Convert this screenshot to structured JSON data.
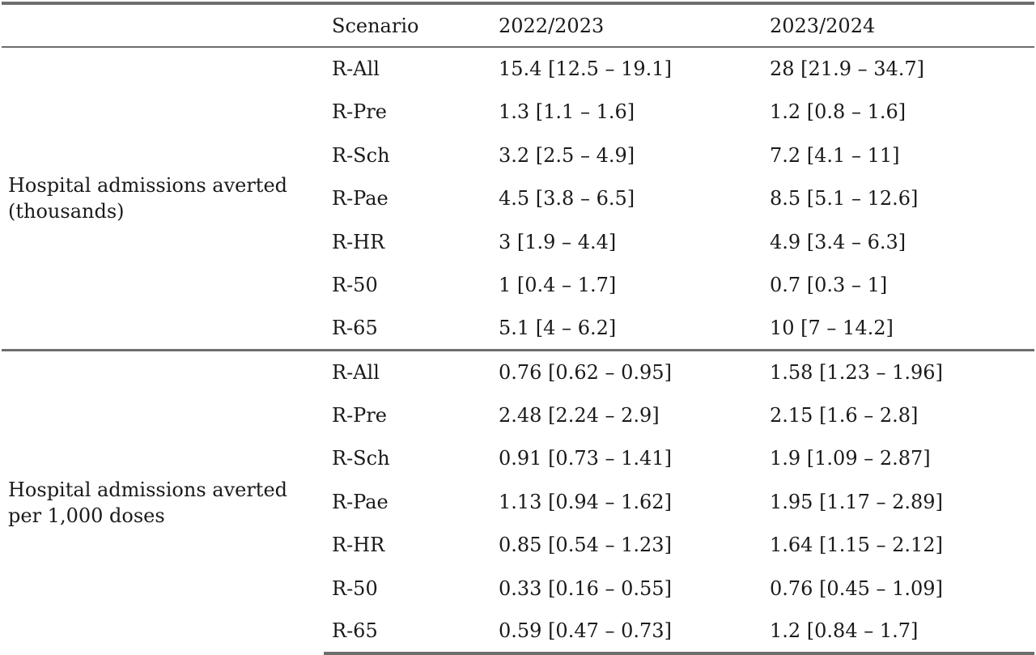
{
  "header": {
    "col0": "",
    "col1": "Scenario",
    "col2": "2022/2023",
    "col3": "2023/2024"
  },
  "groups": [
    {
      "label": "Hospital admissions averted (thousands)",
      "rows": [
        {
          "scenario": "R-All",
          "y2022": "15.4 [12.5 – 19.1]",
          "y2023": "28 [21.9 – 34.7]"
        },
        {
          "scenario": "R-Pre",
          "y2022": "1.3 [1.1 – 1.6]",
          "y2023": "1.2 [0.8 – 1.6]"
        },
        {
          "scenario": "R-Sch",
          "y2022": "3.2 [2.5 – 4.9]",
          "y2023": "7.2 [4.1 – 11]"
        },
        {
          "scenario": "R-Pae",
          "y2022": "4.5 [3.8 – 6.5]",
          "y2023": "8.5 [5.1 – 12.6]"
        },
        {
          "scenario": "R-HR",
          "y2022": "3 [1.9 – 4.4]",
          "y2023": "4.9 [3.4 – 6.3]"
        },
        {
          "scenario": "R-50",
          "y2022": "1 [0.4 – 1.7]",
          "y2023": "0.7 [0.3 – 1]"
        },
        {
          "scenario": "R-65",
          "y2022": "5.1 [4 – 6.2]",
          "y2023": "10 [7 – 14.2]"
        }
      ]
    },
    {
      "label": "Hospital admissions averted per 1,000 doses",
      "rows": [
        {
          "scenario": "R-All",
          "y2022": "0.76 [0.62 – 0.95]",
          "y2023": "1.58 [1.23 – 1.96]"
        },
        {
          "scenario": "R-Pre",
          "y2022": "2.48 [2.24 – 2.9]",
          "y2023": "2.15 [1.6 – 2.8]"
        },
        {
          "scenario": "R-Sch",
          "y2022": "0.91 [0.73 – 1.41]",
          "y2023": "1.9 [1.09 – 2.87]"
        },
        {
          "scenario": "R-Pae",
          "y2022": "1.13 [0.94 – 1.62]",
          "y2023": "1.95 [1.17 – 2.89]"
        },
        {
          "scenario": "R-HR",
          "y2022": "0.85 [0.54 – 1.23]",
          "y2023": "1.64 [1.15 – 2.12]"
        },
        {
          "scenario": "R-50",
          "y2022": "0.33 [0.16 – 0.55]",
          "y2023": "0.76 [0.45 – 1.09]"
        },
        {
          "scenario": "R-65",
          "y2022": "0.59 [0.47 – 0.73]",
          "y2023": "1.2 [0.84 – 1.7]"
        }
      ]
    }
  ]
}
